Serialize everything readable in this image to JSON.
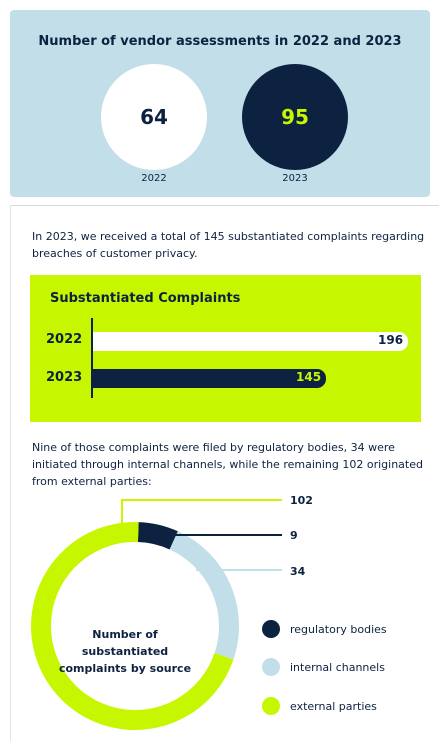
{
  "colors": {
    "navy": "#0d2240",
    "lime": "#c7f700",
    "light_blue": "#c2dee8",
    "white": "#ffffff"
  },
  "vendor_assessments": {
    "title": "Number of vendor assessments in 2022 and 2023",
    "items": [
      {
        "year": "2022",
        "value": "64"
      },
      {
        "year": "2023",
        "value": "95"
      }
    ]
  },
  "intro_text": "In 2023, we received a total of 145 substantiated complaints regarding breaches of customer privacy.",
  "source_text": "Nine of those complaints were filed by regulatory bodies, 34 were initiated through internal channels, while the remaining 102 originated from external parties:",
  "chart_data": [
    {
      "type": "bar",
      "title": "Number of vendor assessments in 2022 and 2023",
      "categories": [
        "2022",
        "2023"
      ],
      "values": [
        64,
        95
      ]
    },
    {
      "type": "bar",
      "orientation": "horizontal",
      "title": "Substantiated Complaints",
      "categories": [
        "2022",
        "2023"
      ],
      "values": [
        196,
        145
      ],
      "value_labels": [
        "196",
        "145"
      ]
    },
    {
      "type": "pie",
      "variant": "donut",
      "title": "Number of substantiated complaints by source",
      "categories": [
        "regulatory bodies",
        "internal channels",
        "external parties"
      ],
      "values": [
        9,
        34,
        102
      ],
      "value_labels": [
        "9",
        "34",
        "102"
      ],
      "colors": [
        "#0d2240",
        "#c2dee8",
        "#c7f700"
      ],
      "legend_position": "right"
    }
  ]
}
